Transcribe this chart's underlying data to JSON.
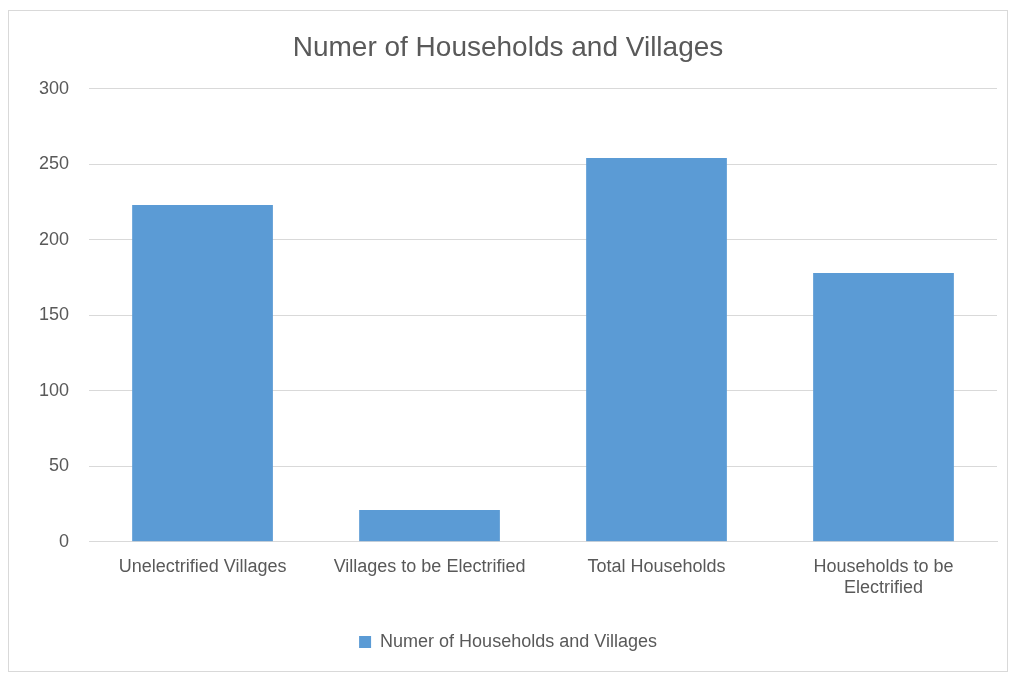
{
  "chart_data": {
    "type": "bar",
    "title": "Numer of Households and Villages",
    "categories": [
      "Unelectrified Villages",
      "Villages to be Electrified",
      "Total Households",
      "Households to be Electrified"
    ],
    "series": [
      {
        "name": "Numer of Households and Villages",
        "color": "#5b9bd5",
        "values": [
          223,
          21,
          254,
          178
        ]
      }
    ],
    "ylim": [
      0,
      300
    ],
    "yticks": [
      0,
      50,
      100,
      150,
      200,
      250,
      300
    ],
    "grid": "y",
    "legend": "bottom"
  }
}
